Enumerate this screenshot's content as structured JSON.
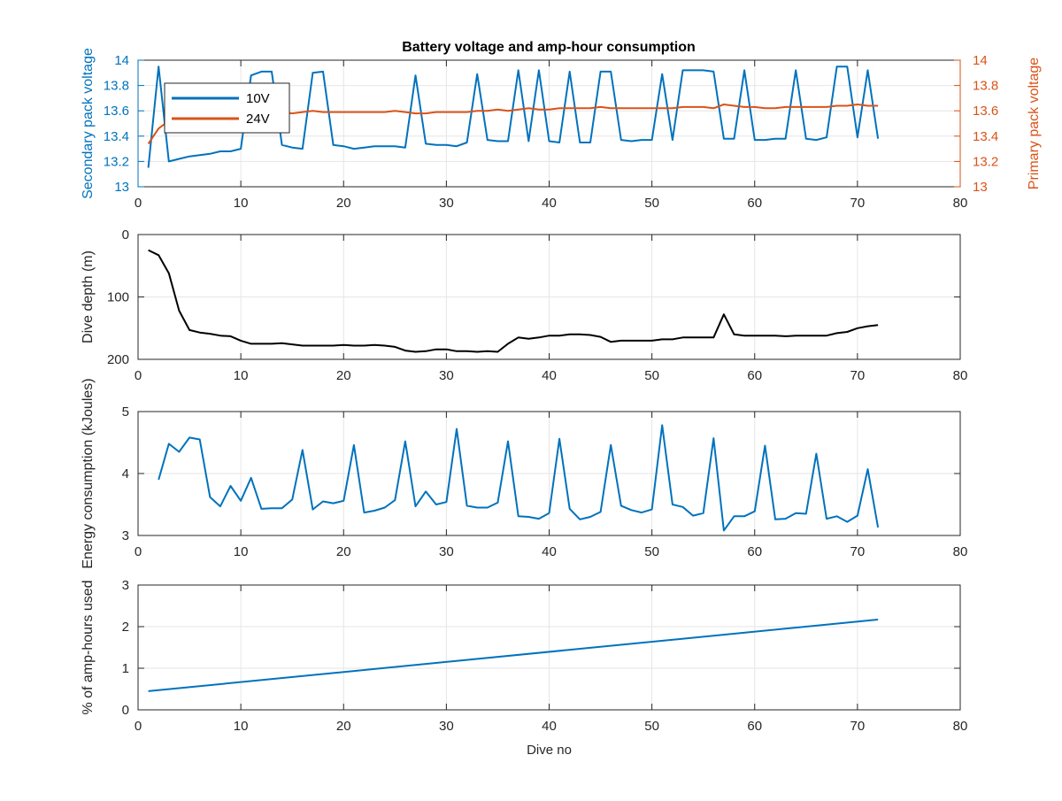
{
  "figure": {
    "title": "Battery voltage and amp-hour consumption"
  },
  "colors": {
    "blue": "#0072BD",
    "orange": "#D95319",
    "black": "#000000",
    "grid": "#e6e6e6",
    "axis": "#262626"
  },
  "chart_data": [
    {
      "type": "line",
      "title": "Battery voltage and amp-hour consumption",
      "xlabel": "",
      "ylabel": "Secondary pack voltage",
      "y2label": "Primary pack voltage",
      "xlim": [
        0,
        80
      ],
      "ylim": [
        13,
        14
      ],
      "y2lim": [
        13,
        14
      ],
      "xticks": [
        "0",
        "10",
        "20",
        "30",
        "40",
        "50",
        "60",
        "70",
        "80"
      ],
      "yticks": [
        "13",
        "13.2",
        "13.4",
        "13.6",
        "13.8",
        "14"
      ],
      "y2ticks": [
        "13",
        "13.2",
        "13.4",
        "13.6",
        "13.8",
        "14"
      ],
      "grid": true,
      "legend": {
        "position": "top-left",
        "entries": [
          "10V",
          "24V"
        ]
      },
      "series": [
        {
          "name": "10V",
          "axis": "left",
          "color": "#0072BD",
          "x": [
            1,
            2,
            3,
            4,
            5,
            6,
            7,
            8,
            9,
            10,
            11,
            12,
            13,
            14,
            15,
            16,
            17,
            18,
            19,
            20,
            21,
            22,
            23,
            24,
            25,
            26,
            27,
            28,
            29,
            30,
            31,
            32,
            33,
            34,
            35,
            36,
            37,
            38,
            39,
            40,
            41,
            42,
            43,
            44,
            45,
            46,
            47,
            48,
            49,
            50,
            51,
            52,
            53,
            54,
            55,
            56,
            57,
            58,
            59,
            60,
            61,
            62,
            63,
            64,
            65,
            66,
            67,
            68,
            69,
            70,
            71,
            72
          ],
          "y": [
            13.15,
            13.95,
            13.2,
            13.22,
            13.24,
            13.25,
            13.26,
            13.28,
            13.28,
            13.3,
            13.88,
            13.91,
            13.91,
            13.33,
            13.31,
            13.3,
            13.9,
            13.91,
            13.33,
            13.32,
            13.3,
            13.31,
            13.32,
            13.32,
            13.32,
            13.31,
            13.88,
            13.34,
            13.33,
            13.33,
            13.32,
            13.35,
            13.89,
            13.37,
            13.36,
            13.36,
            13.92,
            13.36,
            13.92,
            13.36,
            13.35,
            13.91,
            13.35,
            13.35,
            13.91,
            13.91,
            13.37,
            13.36,
            13.37,
            13.37,
            13.89,
            13.37,
            13.92,
            13.92,
            13.92,
            13.91,
            13.38,
            13.38,
            13.92,
            13.37,
            13.37,
            13.38,
            13.38,
            13.92,
            13.38,
            13.37,
            13.39,
            13.95,
            13.95,
            13.39,
            13.92,
            13.38
          ]
        },
        {
          "name": "24V",
          "axis": "right",
          "color": "#D95319",
          "x": [
            1,
            2,
            3,
            4,
            5,
            6,
            7,
            8,
            9,
            10,
            11,
            12,
            13,
            14,
            15,
            16,
            17,
            18,
            19,
            20,
            21,
            22,
            23,
            24,
            25,
            26,
            27,
            28,
            29,
            30,
            31,
            32,
            33,
            34,
            35,
            36,
            37,
            38,
            39,
            40,
            41,
            42,
            43,
            44,
            45,
            46,
            47,
            48,
            49,
            50,
            51,
            52,
            53,
            54,
            55,
            56,
            57,
            58,
            59,
            60,
            61,
            62,
            63,
            64,
            65,
            66,
            67,
            68,
            69,
            70,
            71,
            72
          ],
          "y": [
            13.34,
            13.46,
            13.52,
            13.56,
            13.58,
            13.58,
            13.59,
            13.59,
            13.6,
            13.6,
            13.6,
            13.6,
            13.6,
            13.59,
            13.58,
            13.59,
            13.6,
            13.59,
            13.59,
            13.59,
            13.59,
            13.59,
            13.59,
            13.59,
            13.6,
            13.59,
            13.58,
            13.58,
            13.59,
            13.59,
            13.59,
            13.59,
            13.6,
            13.6,
            13.61,
            13.6,
            13.61,
            13.62,
            13.61,
            13.61,
            13.62,
            13.62,
            13.62,
            13.62,
            13.63,
            13.62,
            13.62,
            13.62,
            13.62,
            13.62,
            13.62,
            13.62,
            13.63,
            13.63,
            13.63,
            13.62,
            13.65,
            13.64,
            13.63,
            13.63,
            13.62,
            13.62,
            13.63,
            13.63,
            13.63,
            13.63,
            13.63,
            13.64,
            13.64,
            13.65,
            13.64,
            13.64
          ]
        }
      ]
    },
    {
      "type": "line",
      "title": "",
      "xlabel": "",
      "ylabel": "Dive depth (m)",
      "xlim": [
        0,
        80
      ],
      "ylim": [
        0,
        200
      ],
      "y_reversed": true,
      "xticks": [
        "0",
        "10",
        "20",
        "30",
        "40",
        "50",
        "60",
        "70",
        "80"
      ],
      "yticks": [
        "0",
        "100",
        "200"
      ],
      "grid": true,
      "series": [
        {
          "color": "#000000",
          "x": [
            1,
            2,
            3,
            4,
            5,
            6,
            7,
            8,
            9,
            10,
            11,
            12,
            13,
            14,
            15,
            16,
            17,
            18,
            19,
            20,
            21,
            22,
            23,
            24,
            25,
            26,
            27,
            28,
            29,
            30,
            31,
            32,
            33,
            34,
            35,
            36,
            37,
            38,
            39,
            40,
            41,
            42,
            43,
            44,
            45,
            46,
            47,
            48,
            49,
            50,
            51,
            52,
            53,
            54,
            55,
            56,
            57,
            58,
            59,
            60,
            61,
            62,
            63,
            64,
            65,
            66,
            67,
            68,
            69,
            70,
            71,
            72
          ],
          "y": [
            25,
            33,
            62,
            122,
            153,
            157,
            159,
            162,
            163,
            170,
            175,
            175,
            175,
            174,
            176,
            178,
            178,
            178,
            178,
            177,
            178,
            178,
            177,
            178,
            180,
            186,
            188,
            187,
            184,
            184,
            187,
            187,
            188,
            187,
            188,
            175,
            165,
            167,
            165,
            162,
            162,
            160,
            160,
            161,
            164,
            172,
            170,
            170,
            170,
            170,
            168,
            168,
            165,
            165,
            165,
            165,
            128,
            160,
            162,
            162,
            162,
            162,
            163,
            162,
            162,
            162,
            162,
            158,
            156,
            150,
            147,
            145
          ]
        }
      ]
    },
    {
      "type": "line",
      "title": "",
      "xlabel": "",
      "ylabel": "Energy consumption (kJoules)",
      "xlim": [
        0,
        80
      ],
      "ylim": [
        3,
        5
      ],
      "xticks": [
        "0",
        "10",
        "20",
        "30",
        "40",
        "50",
        "60",
        "70",
        "80"
      ],
      "yticks": [
        "3",
        "4",
        "5"
      ],
      "grid": true,
      "series": [
        {
          "color": "#0072BD",
          "x": [
            2,
            3,
            4,
            5,
            6,
            7,
            8,
            9,
            10,
            11,
            12,
            13,
            14,
            15,
            16,
            17,
            18,
            19,
            20,
            21,
            22,
            23,
            24,
            25,
            26,
            27,
            28,
            29,
            30,
            31,
            32,
            33,
            34,
            35,
            36,
            37,
            38,
            39,
            40,
            41,
            42,
            43,
            44,
            45,
            46,
            47,
            48,
            49,
            50,
            51,
            52,
            53,
            54,
            55,
            56,
            57,
            58,
            59,
            60,
            61,
            62,
            63,
            64,
            65,
            66,
            67,
            68,
            69,
            70,
            71,
            72
          ],
          "y": [
            3.9,
            4.48,
            4.35,
            4.58,
            4.55,
            3.62,
            3.47,
            3.8,
            3.56,
            3.93,
            3.43,
            3.44,
            3.44,
            3.58,
            4.38,
            3.42,
            3.55,
            3.52,
            3.56,
            4.46,
            3.37,
            3.4,
            3.45,
            3.57,
            4.52,
            3.47,
            3.71,
            3.5,
            3.54,
            4.72,
            3.48,
            3.45,
            3.45,
            3.53,
            4.52,
            3.31,
            3.3,
            3.27,
            3.36,
            4.56,
            3.43,
            3.26,
            3.3,
            3.38,
            4.46,
            3.48,
            3.41,
            3.37,
            3.42,
            4.78,
            3.5,
            3.46,
            3.32,
            3.36,
            4.57,
            3.08,
            3.31,
            3.31,
            3.39,
            4.45,
            3.26,
            3.27,
            3.36,
            3.35,
            4.32,
            3.27,
            3.31,
            3.22,
            3.32,
            4.07,
            3.13
          ]
        }
      ]
    },
    {
      "type": "line",
      "title": "",
      "xlabel": "Dive no",
      "ylabel": "% of amp-hours used",
      "xlim": [
        0,
        80
      ],
      "ylim": [
        0,
        3
      ],
      "xticks": [
        "0",
        "10",
        "20",
        "30",
        "40",
        "50",
        "60",
        "70",
        "80"
      ],
      "yticks": [
        "0",
        "1",
        "2",
        "3"
      ],
      "grid": true,
      "series": [
        {
          "color": "#0072BD",
          "x": [
            1,
            72
          ],
          "y": [
            0.45,
            2.17
          ]
        }
      ]
    }
  ]
}
